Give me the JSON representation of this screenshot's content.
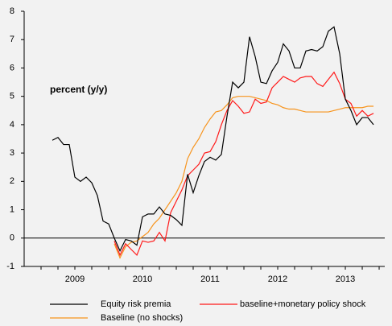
{
  "chart_data": {
    "type": "line",
    "annotation": "percent (y/y)",
    "x": [
      2009.167,
      2009.25,
      2009.333,
      2009.417,
      2009.5,
      2009.583,
      2009.667,
      2009.75,
      2009.833,
      2009.917,
      2010,
      2010.083,
      2010.167,
      2010.25,
      2010.333,
      2010.417,
      2010.5,
      2010.583,
      2010.667,
      2010.75,
      2010.833,
      2010.917,
      2011,
      2011.083,
      2011.167,
      2011.25,
      2011.333,
      2011.417,
      2011.5,
      2011.583,
      2011.667,
      2011.75,
      2011.833,
      2011.917,
      2012,
      2012.083,
      2012.167,
      2012.25,
      2012.333,
      2012.417,
      2012.5,
      2012.583,
      2012.667,
      2012.75,
      2012.833,
      2012.917,
      2013,
      2013.083,
      2013.167,
      2013.25,
      2013.333,
      2013.417,
      2013.5,
      2013.583,
      2013.667,
      2013.75,
      2013.833,
      2013.917
    ],
    "series": [
      {
        "name": "Equity risk premia",
        "color": "#000000",
        "values": [
          3.45,
          3.55,
          3.3,
          3.3,
          2.15,
          2.0,
          2.15,
          1.95,
          1.5,
          0.6,
          0.5,
          0.0,
          -0.45,
          -0.05,
          -0.1,
          -0.25,
          0.75,
          0.85,
          0.85,
          1.1,
          0.85,
          0.8,
          0.65,
          0.45,
          2.25,
          1.6,
          2.2,
          2.7,
          2.85,
          2.75,
          2.95,
          4.3,
          5.5,
          5.3,
          5.5,
          7.1,
          6.4,
          5.5,
          5.45,
          5.9,
          6.2,
          6.85,
          6.6,
          6.0,
          6.0,
          6.6,
          6.65,
          6.6,
          6.75,
          7.3,
          7.45,
          6.5,
          4.9,
          4.5,
          4.0,
          4.25,
          4.25,
          4.0
        ]
      },
      {
        "name": "baseline+monetary policy shock",
        "color": "#ff1a1a",
        "values": [
          null,
          null,
          null,
          null,
          null,
          null,
          null,
          null,
          null,
          null,
          null,
          -0.1,
          -0.6,
          -0.2,
          -0.4,
          -0.6,
          -0.1,
          -0.15,
          -0.1,
          0.2,
          -0.1,
          0.9,
          1.3,
          1.7,
          2.2,
          2.4,
          2.6,
          3.0,
          3.05,
          3.4,
          4.0,
          4.5,
          4.85,
          4.65,
          4.4,
          4.45,
          4.9,
          4.75,
          4.8,
          5.3,
          5.5,
          5.7,
          5.6,
          5.5,
          5.65,
          5.7,
          5.7,
          5.45,
          5.35,
          5.6,
          5.85,
          5.45,
          4.9,
          4.75,
          4.3,
          4.5,
          4.3,
          4.4
        ]
      },
      {
        "name": "Baseline (no shocks)",
        "color": "#f7941d",
        "values": [
          null,
          null,
          null,
          null,
          null,
          null,
          null,
          null,
          null,
          null,
          null,
          -0.2,
          -0.7,
          -0.3,
          -0.15,
          -0.1,
          0.05,
          0.2,
          0.5,
          0.7,
          1.0,
          1.3,
          1.6,
          2.0,
          2.8,
          3.2,
          3.5,
          3.9,
          4.2,
          4.45,
          4.5,
          4.7,
          4.95,
          5.0,
          5.0,
          5.0,
          4.95,
          4.9,
          4.85,
          4.75,
          4.7,
          4.6,
          4.55,
          4.55,
          4.5,
          4.45,
          4.45,
          4.45,
          4.45,
          4.45,
          4.5,
          4.55,
          4.6,
          4.6,
          4.6,
          4.6,
          4.65,
          4.65
        ]
      }
    ],
    "xlim": [
      2008.75,
      2014.083
    ],
    "xticks": [
      {
        "value": 2009.5,
        "label": "2009"
      },
      {
        "value": 2010.5,
        "label": "2010"
      },
      {
        "value": 2011.5,
        "label": "2011"
      },
      {
        "value": 2012.5,
        "label": "2012"
      },
      {
        "value": 2013.5,
        "label": "2013"
      }
    ],
    "xminorticks": [
      2009,
      2009.25,
      2009.5,
      2009.75,
      2010,
      2010.25,
      2010.5,
      2010.75,
      2011,
      2011.25,
      2011.5,
      2011.75,
      2012,
      2012.25,
      2012.5,
      2012.75,
      2013,
      2013.25,
      2013.5,
      2013.75,
      2014
    ],
    "ylim": [
      -1,
      8
    ],
    "yticks": [
      -1,
      0,
      1,
      2,
      3,
      4,
      5,
      6,
      7,
      8
    ],
    "zero_line": true,
    "grid": false,
    "legend": "bottom"
  }
}
